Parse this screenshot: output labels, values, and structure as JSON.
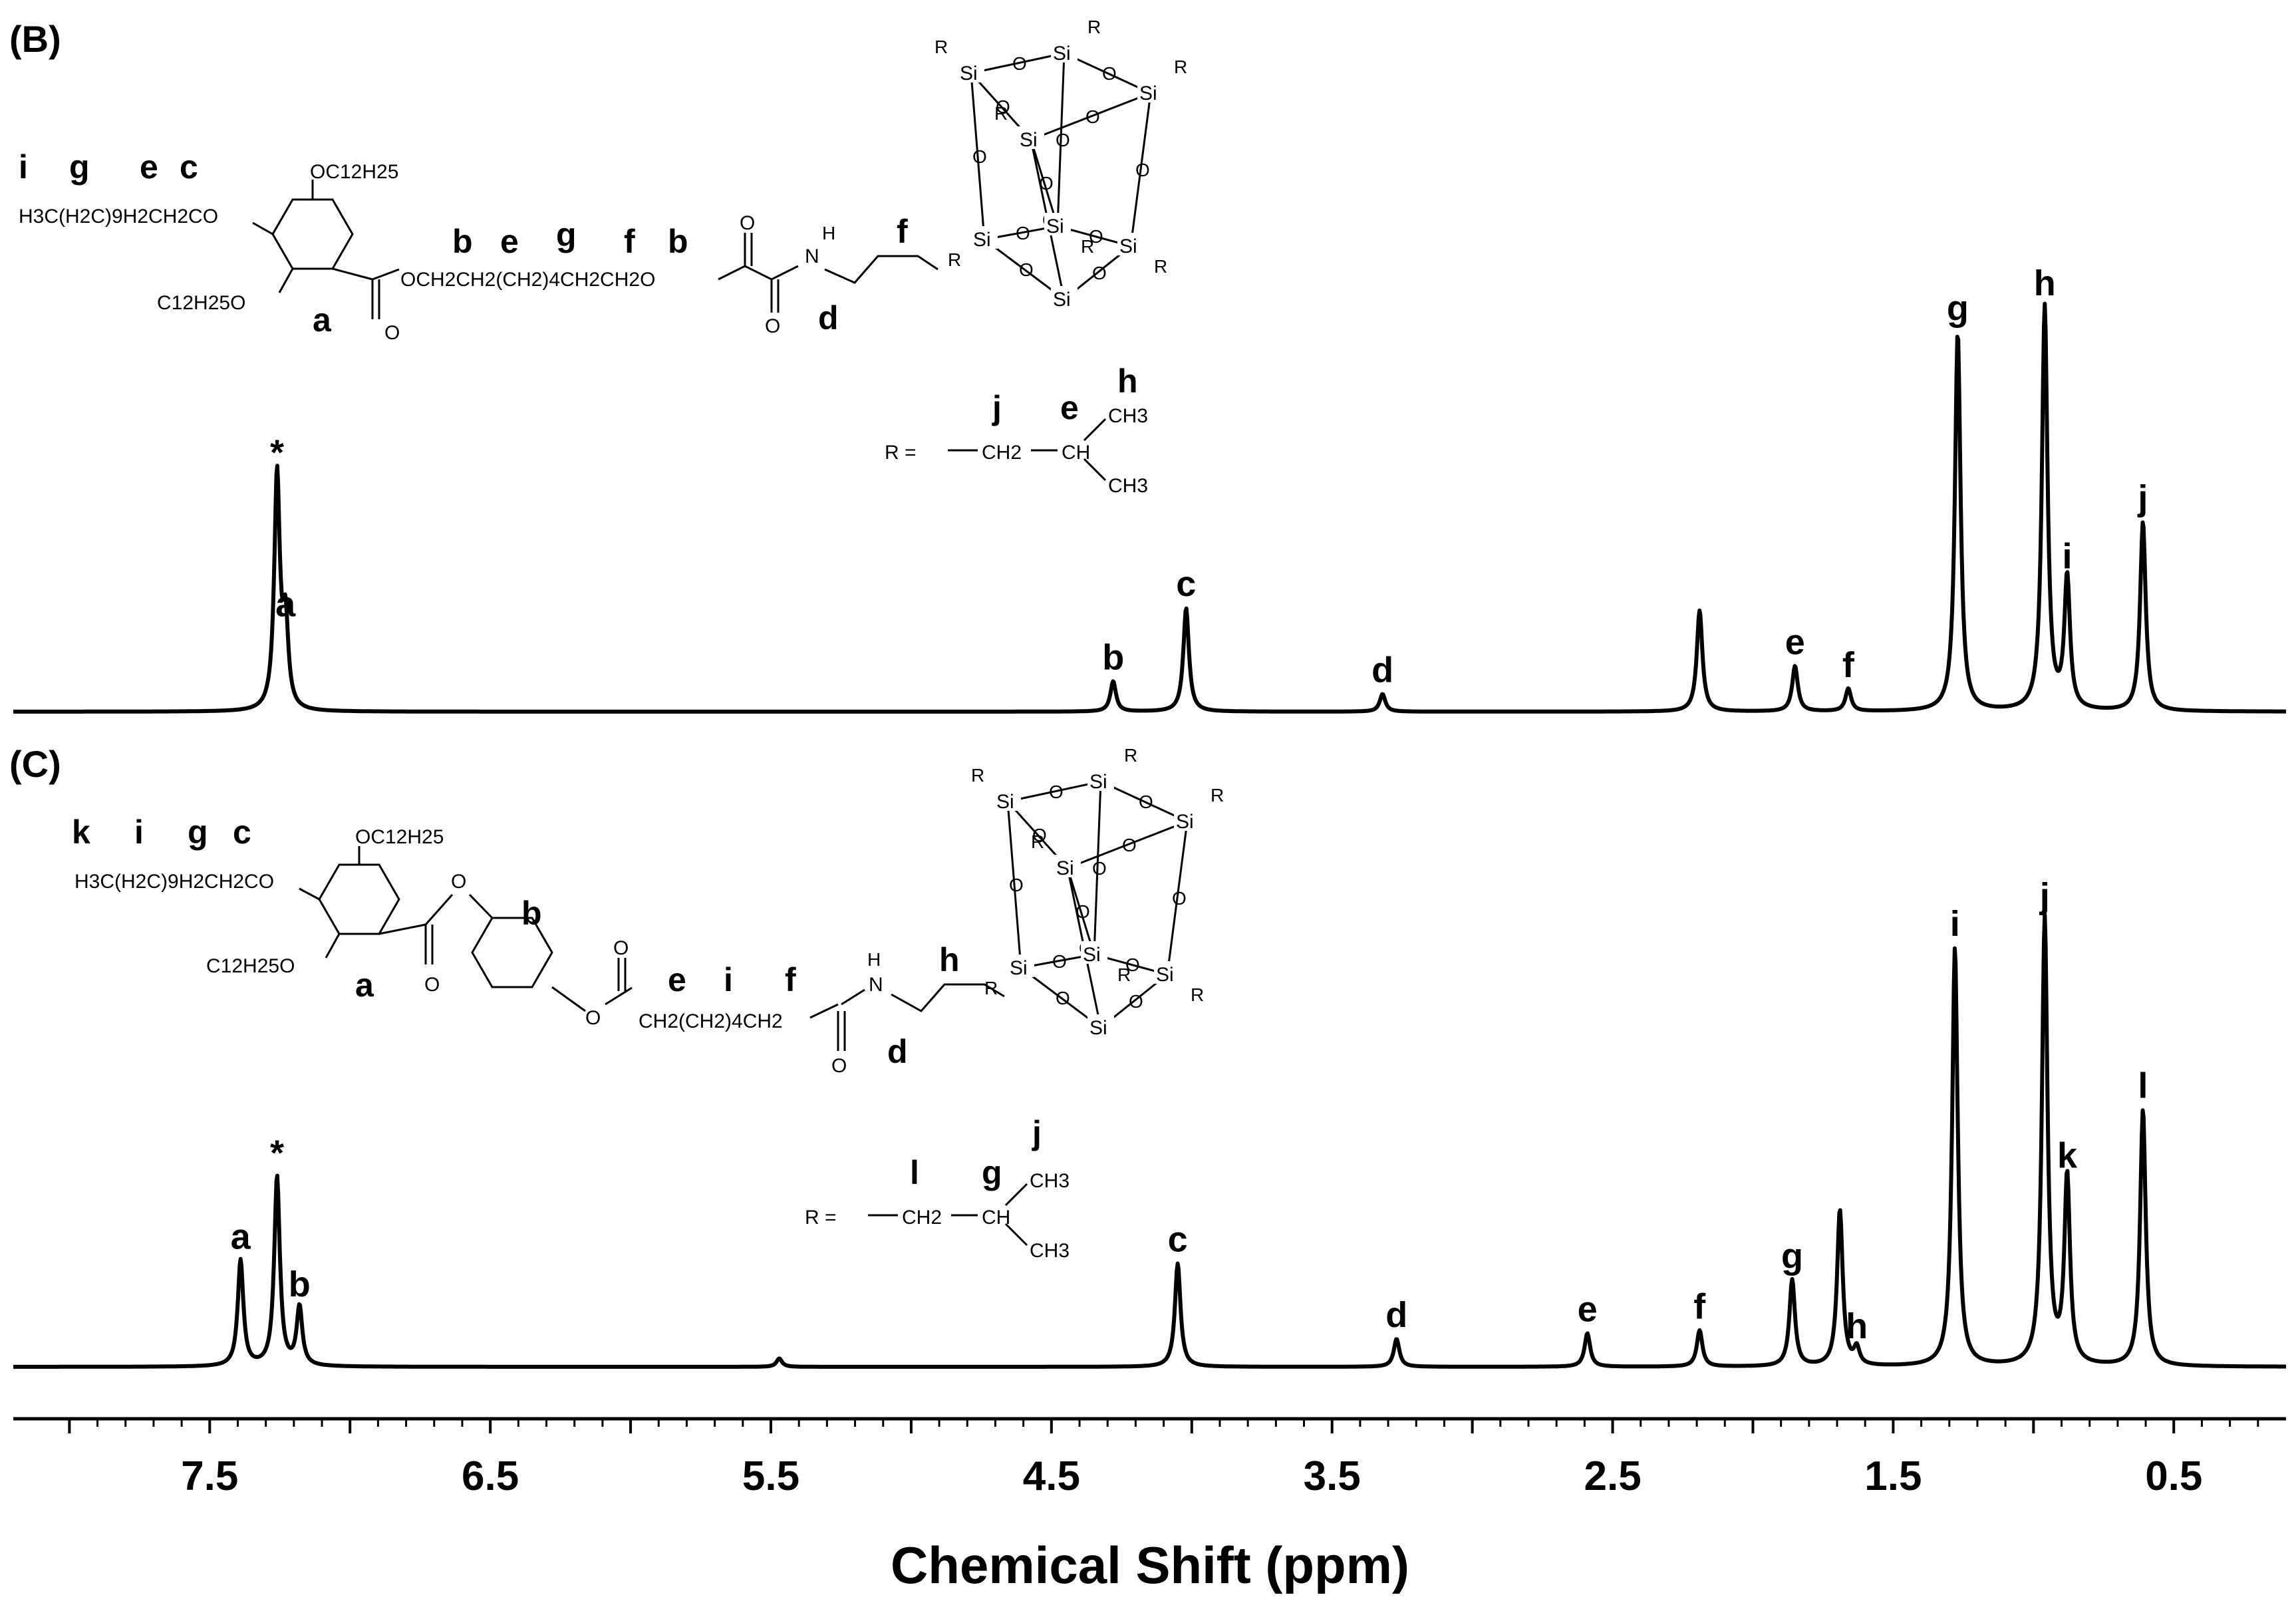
{
  "chart_data": {
    "type": "line",
    "xlabel": "Chemical Shift (ppm)",
    "x_range": [
      8.2,
      0.1
    ],
    "x_ticks": [
      "7.5",
      "6.5",
      "5.5",
      "4.5",
      "3.5",
      "2.5",
      "1.5",
      "0.5"
    ],
    "x_tick_values": [
      7.5,
      6.5,
      5.5,
      4.5,
      3.5,
      2.5,
      1.5,
      0.5
    ],
    "panels": [
      {
        "label": "(B)",
        "structure": {
          "row_labels": [
            "i",
            "g",
            "e",
            "c"
          ],
          "chain_text": "H3C(H2C)9H2CH2CO",
          "sub_top": "OC12H25",
          "sub_bottom": "C12H25O",
          "ester_chain": "OCH2CH2(CH2)4CH2CH2O",
          "chain_labels": [
            "b",
            "e",
            "g",
            "f",
            "b"
          ],
          "ring_label": "a",
          "amide_label": "d",
          "linker_label": "f",
          "r_def": "R =",
          "r_chain": "CH2",
          "r_ch": "CH",
          "r_ch3": "CH3",
          "r_labels": [
            "j",
            "e",
            "h"
          ]
        },
        "peaks": [
          {
            "label": "*",
            "ppm": 7.26,
            "height": 0.93
          },
          {
            "label": "a",
            "ppm": 7.23,
            "height": 0.33
          },
          {
            "label": "b",
            "ppm": 4.28,
            "height": 0.12
          },
          {
            "label": "c",
            "ppm": 4.02,
            "height": 0.41
          },
          {
            "label": "d",
            "ppm": 3.32,
            "height": 0.07
          },
          {
            "label": "",
            "ppm": 2.19,
            "height": 0.4
          },
          {
            "label": "e",
            "ppm": 1.85,
            "height": 0.18
          },
          {
            "label": "f",
            "ppm": 1.66,
            "height": 0.09
          },
          {
            "label": "g",
            "ppm": 1.27,
            "height": 1.5
          },
          {
            "label": "h",
            "ppm": 0.96,
            "height": 1.6
          },
          {
            "label": "i",
            "ppm": 0.88,
            "height": 0.52
          },
          {
            "label": "j",
            "ppm": 0.61,
            "height": 0.75
          }
        ]
      },
      {
        "label": "(C)",
        "structure": {
          "row_labels": [
            "k",
            "i",
            "g",
            "c"
          ],
          "chain_text": "H3C(H2C)9H2CH2CO",
          "sub_top": "OC12H25",
          "sub_bottom": "C12H25O",
          "phenyl_label": "b",
          "ring_label": "a",
          "acyl_chain": "CH2(CH2)4CH2",
          "chain_labels": [
            "e",
            "i",
            "f"
          ],
          "amide_label": "d",
          "linker_label": "h",
          "r_def": "R =",
          "r_chain": "CH2",
          "r_ch": "CH",
          "r_ch3": "CH3",
          "r_labels": [
            "l",
            "g",
            "j"
          ]
        },
        "peaks": [
          {
            "label": "a",
            "ppm": 7.39,
            "height": 0.38
          },
          {
            "label": "*",
            "ppm": 7.26,
            "height": 0.68
          },
          {
            "label": "b",
            "ppm": 7.18,
            "height": 0.21
          },
          {
            "label": "",
            "ppm": 5.47,
            "height": 0.03
          },
          {
            "label": "c",
            "ppm": 4.05,
            "height": 0.37
          },
          {
            "label": "d",
            "ppm": 3.27,
            "height": 0.1
          },
          {
            "label": "e",
            "ppm": 2.59,
            "height": 0.12
          },
          {
            "label": "f",
            "ppm": 2.19,
            "height": 0.13
          },
          {
            "label": "g",
            "ppm": 1.86,
            "height": 0.31
          },
          {
            "label": "",
            "ppm": 1.69,
            "height": 0.56
          },
          {
            "label": "h",
            "ppm": 1.63,
            "height": 0.06
          },
          {
            "label": "i",
            "ppm": 1.28,
            "height": 1.5
          },
          {
            "label": "j",
            "ppm": 0.96,
            "height": 1.6
          },
          {
            "label": "k",
            "ppm": 0.88,
            "height": 0.67
          },
          {
            "label": "l",
            "ppm": 0.61,
            "height": 0.92
          }
        ]
      }
    ],
    "poss_labels": {
      "si": "Si",
      "o": "O",
      "r": "R"
    }
  }
}
